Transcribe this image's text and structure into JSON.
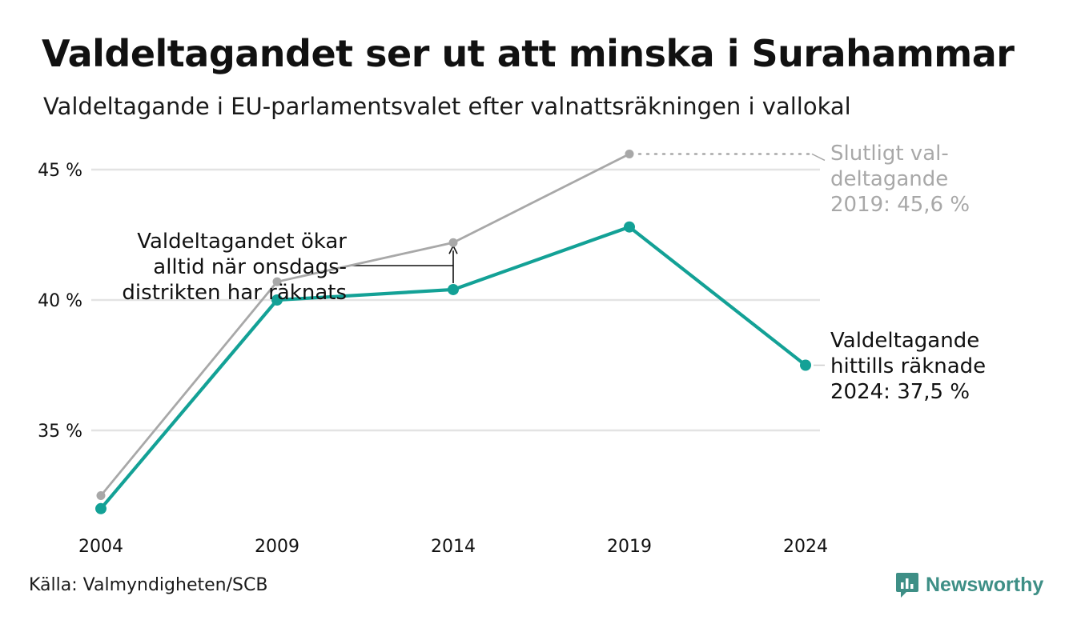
{
  "header": {
    "title": "Valdeltagandet ser ut att minska i Surahammar",
    "subtitle": "Valdeltagande i EU-parlamentsvalet efter valnattsräkningen i vallokal"
  },
  "footer": {
    "source": "Källa: Valmyndigheten/SCB",
    "brand": "Newsworthy"
  },
  "colors": {
    "counted": "#13a196",
    "final": "#a8a8a8",
    "grid": "#e3e3e3",
    "text": "#111111",
    "brand": "#3e8f86"
  },
  "chart_data": {
    "type": "line",
    "title": "Valdeltagandet ser ut att minska i Surahammar",
    "subtitle": "Valdeltagande i EU-parlamentsvalet efter valnattsräkningen i vallokal",
    "x": [
      2004,
      2009,
      2014,
      2019,
      2024
    ],
    "ylim": [
      31.5,
      46.5
    ],
    "yticks": [
      35,
      40,
      45
    ],
    "ytick_labels": [
      "35 %",
      "40 %",
      "45 %"
    ],
    "xtick_labels": [
      "2004",
      "2009",
      "2014",
      "2019",
      "2024"
    ],
    "grid": true,
    "series": [
      {
        "key": "final",
        "values": [
          32.5,
          40.7,
          42.2,
          45.6,
          null
        ]
      },
      {
        "key": "counted",
        "values": [
          32.0,
          40.0,
          40.4,
          42.8,
          37.5
        ]
      }
    ],
    "annotations": {
      "final_label": [
        "Slutligt val-",
        "deltagande",
        "2019: 45,6 %"
      ],
      "counted_label": [
        "Valdeltagande",
        "hittills räknade",
        "2024: 37,5 %"
      ],
      "gap_note": [
        "Valdeltagandet ökar",
        "alltid när onsdags-",
        "distrikten har räknats"
      ]
    }
  }
}
